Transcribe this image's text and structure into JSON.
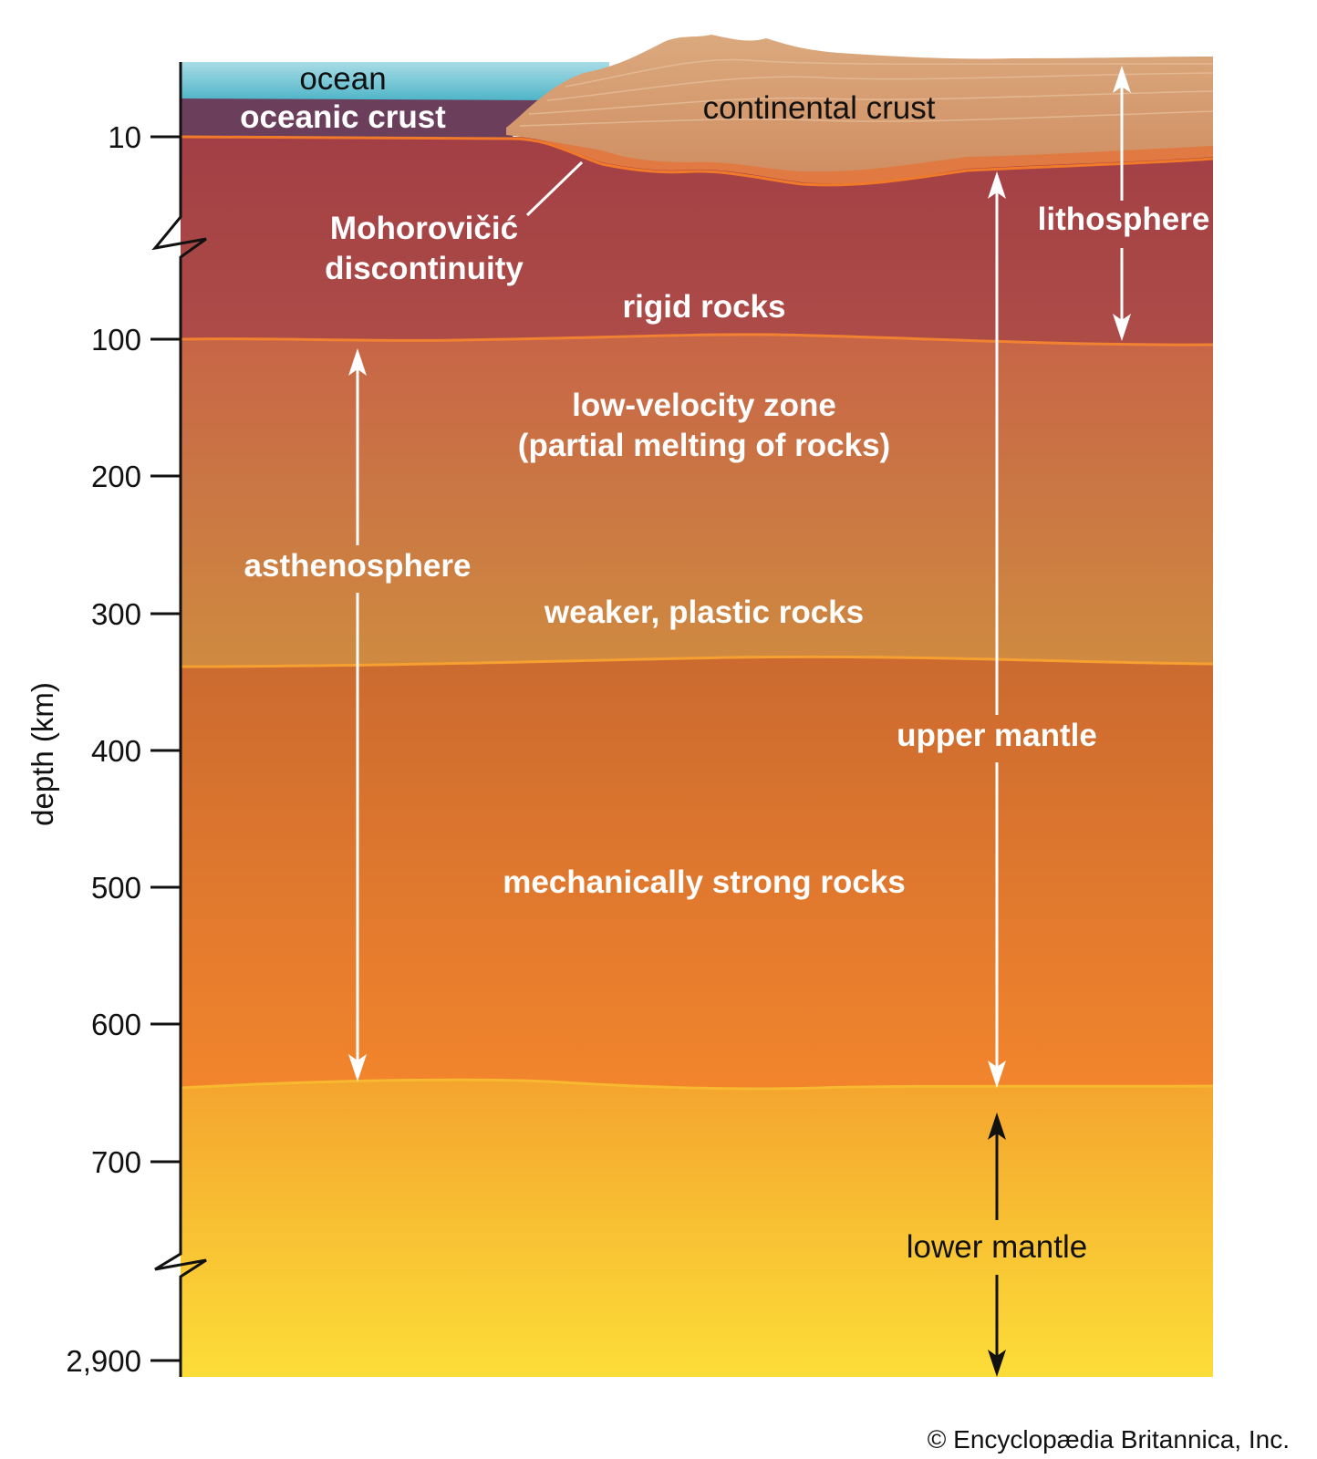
{
  "axis": {
    "label": "depth (km)",
    "ticks": [
      "10",
      "100",
      "200",
      "300",
      "400",
      "500",
      "600",
      "700",
      "2,900"
    ]
  },
  "layers": {
    "ocean": "ocean",
    "oceanic_crust": "oceanic crust",
    "continental_crust": "continental crust",
    "moho_line1": "Mohorovičić",
    "moho_line2": "discontinuity",
    "rigid_rocks": "rigid rocks",
    "low_velocity_line1": "low-velocity zone",
    "low_velocity_line2": "(partial melting of rocks)",
    "weaker_rocks": "weaker, plastic rocks",
    "strong_rocks": "mechanically strong rocks"
  },
  "spans": {
    "lithosphere": "lithosphere",
    "asthenosphere": "asthenosphere",
    "upper_mantle": "upper mantle",
    "lower_mantle": "lower mantle"
  },
  "credit": "© Encyclopædia Britannica, Inc.",
  "colors": {
    "ocean": "#5bbfd0",
    "oceanic_crust": "#6b3f5c",
    "continental_crust": "#d9a77a",
    "lithosphere_mantle": "#a54747",
    "low_velocity": "#c96a45",
    "transition": "#d9742e",
    "lower_mantle": "#f9d33a",
    "boundary_line": "#f07a2a"
  }
}
